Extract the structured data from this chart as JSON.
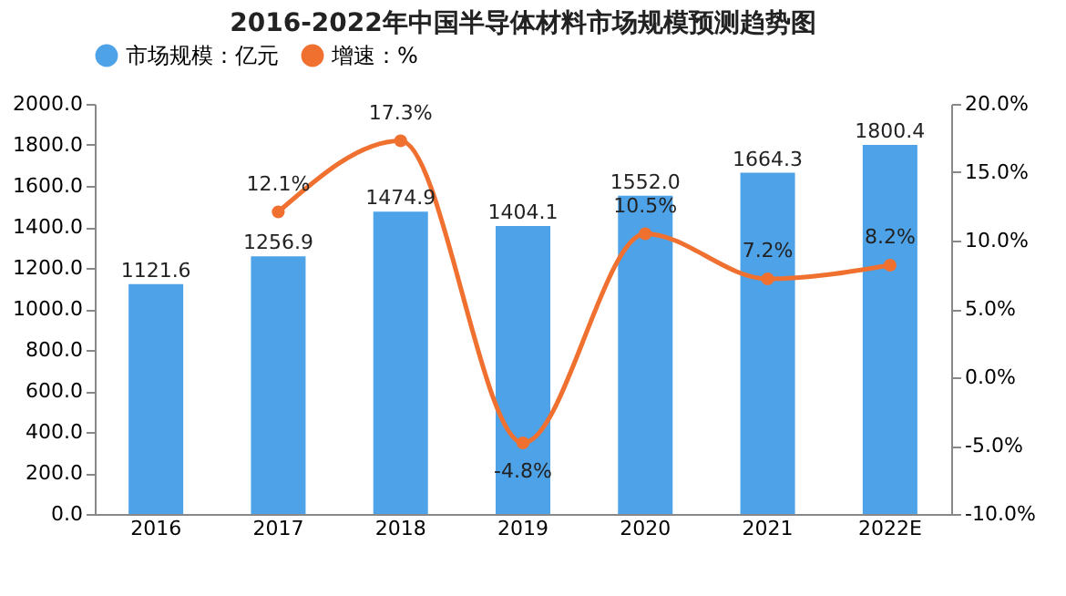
{
  "chart_data": {
    "type": "bar",
    "title": "2016-2022年中国半导体材料市场规模预测趋势图",
    "categories": [
      "2016",
      "2017",
      "2018",
      "2019",
      "2020",
      "2021",
      "2022E"
    ],
    "series": [
      {
        "name": "市场规模：亿元",
        "color": "#4ea3e8",
        "values": [
          1121.6,
          1256.9,
          1474.9,
          1404.1,
          1552.0,
          1664.3,
          1800.4
        ],
        "value_labels": [
          "1121.6",
          "1256.9",
          "1474.9",
          "1404.1",
          "1552.0",
          "1664.3",
          "1800.4"
        ]
      },
      {
        "name": "增速：%",
        "type": "line",
        "axis": "y2",
        "color": "#f07030",
        "values": [
          null,
          12.1,
          17.3,
          -4.8,
          10.5,
          7.2,
          8.2
        ],
        "value_labels": [
          null,
          "12.1%",
          "17.3%",
          "-4.8%",
          "10.5%",
          "7.2%",
          "8.2%"
        ]
      }
    ],
    "ylim": [
      0,
      2000
    ],
    "yticks": [
      {
        "value": 0,
        "label": "0.0"
      },
      {
        "value": 200,
        "label": "200.0"
      },
      {
        "value": 400,
        "label": "400.0"
      },
      {
        "value": 600,
        "label": "600.0"
      },
      {
        "value": 800,
        "label": "800.0"
      },
      {
        "value": 1000,
        "label": "1000.0"
      },
      {
        "value": 1200,
        "label": "1200.0"
      },
      {
        "value": 1400,
        "label": "1400.0"
      },
      {
        "value": 1600,
        "label": "1600.0"
      },
      {
        "value": 1800,
        "label": "1800.0"
      },
      {
        "value": 2000,
        "label": "2000.0"
      }
    ],
    "y2lim": [
      -10,
      20
    ],
    "y2ticks": [
      {
        "value": -10,
        "label": "-10.0%"
      },
      {
        "value": -5,
        "label": "-5.0%"
      },
      {
        "value": 0,
        "label": "0.0%"
      },
      {
        "value": 5,
        "label": "5.0%"
      },
      {
        "value": 10,
        "label": "10.0%"
      },
      {
        "value": 15,
        "label": "15.0%"
      },
      {
        "value": 20,
        "label": "20.0%"
      }
    ],
    "legend": "top",
    "marker": "circle"
  }
}
